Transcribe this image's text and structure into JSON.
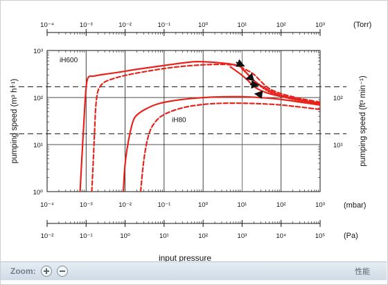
{
  "chart_data": {
    "type": "line",
    "x_scale": "log",
    "y_scale": "log",
    "grid": true,
    "xlim": [
      0.0001,
      1000
    ],
    "ylim": [
      1,
      1000
    ],
    "xlabel": "input pressure",
    "ylabel_left": "pumping speed (m³ h⁻¹)",
    "ylabel_right": "pumping speed (ft³ min⁻¹)",
    "axes": {
      "mbar": {
        "unit": "(mbar)",
        "ticks": [
          0.0001,
          0.001,
          0.01,
          0.1,
          1,
          10,
          100,
          1000
        ],
        "labels": [
          "10⁻⁴",
          "10⁻³",
          "10⁻²",
          "10⁻¹",
          "10⁰",
          "10¹",
          "10²",
          "10³"
        ]
      },
      "torr": {
        "unit": "(Torr)",
        "ticks": [
          0.0001,
          0.001,
          0.01,
          0.1,
          1,
          10,
          100,
          1000
        ],
        "labels": [
          "10⁻⁴",
          "10⁻³",
          "10⁻²",
          "10⁻¹",
          "10⁰",
          "10¹",
          "10²",
          "10³"
        ]
      },
      "pa": {
        "unit": "(Pa)",
        "ticks": [
          0.01,
          0.1,
          1,
          10,
          100,
          1000,
          10000,
          100000
        ],
        "labels": [
          "10⁻²",
          "10⁻¹",
          "10⁰",
          "10¹",
          "10²",
          "10³",
          "10⁴",
          "10⁵"
        ]
      },
      "y_left": {
        "ticks": [
          1,
          10,
          100,
          1000
        ],
        "labels": [
          "10⁰",
          "10¹",
          "10²",
          "10³"
        ]
      },
      "y_right": {
        "ticks": [
          10,
          100
        ],
        "labels": [
          "10¹",
          "10²"
        ],
        "reference_lines": [
          16.99,
          169.9
        ]
      }
    },
    "annotations": [
      "iH600",
      "iH80"
    ],
    "series": [
      {
        "name": "iH600",
        "style": "solid",
        "x": [
          0.0007,
          0.00085,
          0.001,
          0.00115,
          0.0015,
          0.002,
          0.005,
          0.02,
          0.1,
          0.5,
          1,
          2,
          5,
          8,
          10,
          20,
          50,
          100,
          300,
          1000
        ],
        "y": [
          1,
          20,
          200,
          290,
          280,
          300,
          330,
          400,
          480,
          580,
          580,
          560,
          520,
          480,
          430,
          220,
          140,
          110,
          90,
          75
        ]
      },
      {
        "name": "iH600",
        "style": "dashed",
        "x": [
          0.0014,
          0.0016,
          0.0018,
          0.0025,
          0.004,
          0.01,
          0.05,
          0.2,
          1,
          3,
          5,
          8,
          10,
          20,
          30,
          50,
          100,
          300,
          1000
        ],
        "y": [
          1,
          10,
          120,
          200,
          240,
          300,
          380,
          450,
          500,
          510,
          500,
          480,
          430,
          320,
          220,
          150,
          120,
          95,
          80
        ]
      },
      {
        "name": "iH600",
        "style": "solid",
        "x": [
          5,
          10,
          15,
          20,
          30,
          50,
          100,
          300,
          1000
        ],
        "y": [
          450,
          300,
          220,
          170,
          140,
          120,
          105,
          90,
          72
        ]
      },
      {
        "name": "iH600",
        "style": "dotted",
        "x": [
          10,
          15,
          20,
          30,
          50,
          100,
          300,
          1000
        ],
        "y": [
          400,
          300,
          230,
          170,
          130,
          105,
          85,
          68
        ]
      },
      {
        "name": "iH80",
        "style": "solid",
        "x": [
          0.009,
          0.01,
          0.015,
          0.02,
          0.05,
          0.1,
          0.3,
          1,
          3,
          10,
          30,
          100,
          300,
          1000
        ],
        "y": [
          1,
          5,
          30,
          45,
          68,
          80,
          92,
          100,
          104,
          105,
          100,
          92,
          80,
          70
        ]
      },
      {
        "name": "iH80",
        "style": "dashed",
        "x": [
          0.025,
          0.03,
          0.04,
          0.06,
          0.1,
          0.3,
          1,
          3,
          10,
          30,
          100,
          300,
          1000
        ],
        "y": [
          1,
          5,
          18,
          32,
          45,
          62,
          72,
          76,
          76,
          74,
          70,
          63,
          56
        ]
      }
    ],
    "arrows": [
      {
        "x": [
          7,
          11
        ],
        "y": [
          560,
          470
        ]
      },
      {
        "x": [
          18,
          13
        ],
        "y": [
          270,
          250
        ]
      },
      {
        "x": [
          16,
          26
        ],
        "y": [
          190,
          185
        ]
      },
      {
        "x": [
          32,
          22
        ],
        "y": [
          115,
          120
        ]
      }
    ]
  },
  "toolbar": {
    "zoom_label": "Zoom:",
    "corner_label": "性能"
  }
}
